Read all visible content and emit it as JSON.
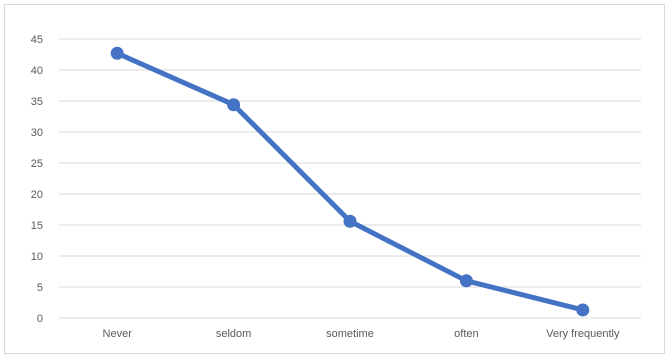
{
  "chart_data": {
    "type": "line",
    "title": "",
    "xlabel": "",
    "ylabel": "",
    "categories": [
      "Never",
      "seldom",
      "sometime",
      "often",
      "Very frequently"
    ],
    "series": [
      {
        "values": [
          42.7,
          34.4,
          15.6,
          6.0,
          1.3
        ],
        "color": "#4472C4"
      }
    ],
    "ylim": [
      0,
      45
    ],
    "yticks": [
      0,
      5,
      10,
      15,
      20,
      25,
      30,
      35,
      40,
      45
    ],
    "ytick_labels": [
      "0",
      "5",
      "10",
      "15",
      "20",
      "25",
      "30",
      "35",
      "40",
      "45"
    ],
    "grid": true,
    "legend": "none",
    "colors": {
      "line": "#4472C4",
      "grid": "#d9d9d9",
      "axis_text": "#595959"
    }
  }
}
